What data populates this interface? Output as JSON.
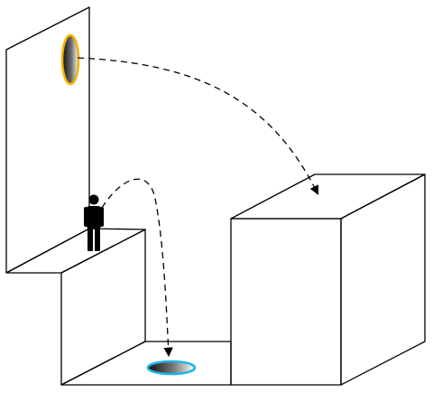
{
  "diagram": {
    "kind": "portal-trajectory-illustration",
    "text_labels": [],
    "colors": {
      "background": "#ffffff",
      "line": "#000000",
      "portal_orange_rim": "#f5b400",
      "portal_blue_rim": "#1fb4e6",
      "portal_dark": "#111111",
      "portal_light": "#ffffff",
      "figure": "#000000"
    },
    "elements": [
      {
        "name": "tall-wall",
        "role": "vertical wall holding the orange portal"
      },
      {
        "name": "standing-ledge",
        "role": "raised step the person stands on"
      },
      {
        "name": "pit-floor",
        "role": "low floor holding the blue portal"
      },
      {
        "name": "tall-box",
        "role": "large cube, landing target"
      },
      {
        "name": "orange-portal",
        "role": "exit portal on wall"
      },
      {
        "name": "blue-portal",
        "role": "entry portal on floor"
      },
      {
        "name": "person-figure",
        "role": "stick figure standing on ledge"
      },
      {
        "name": "trajectory-into-blue-portal",
        "style": "dashed arrow"
      },
      {
        "name": "trajectory-onto-box",
        "style": "dashed arrow"
      }
    ]
  }
}
